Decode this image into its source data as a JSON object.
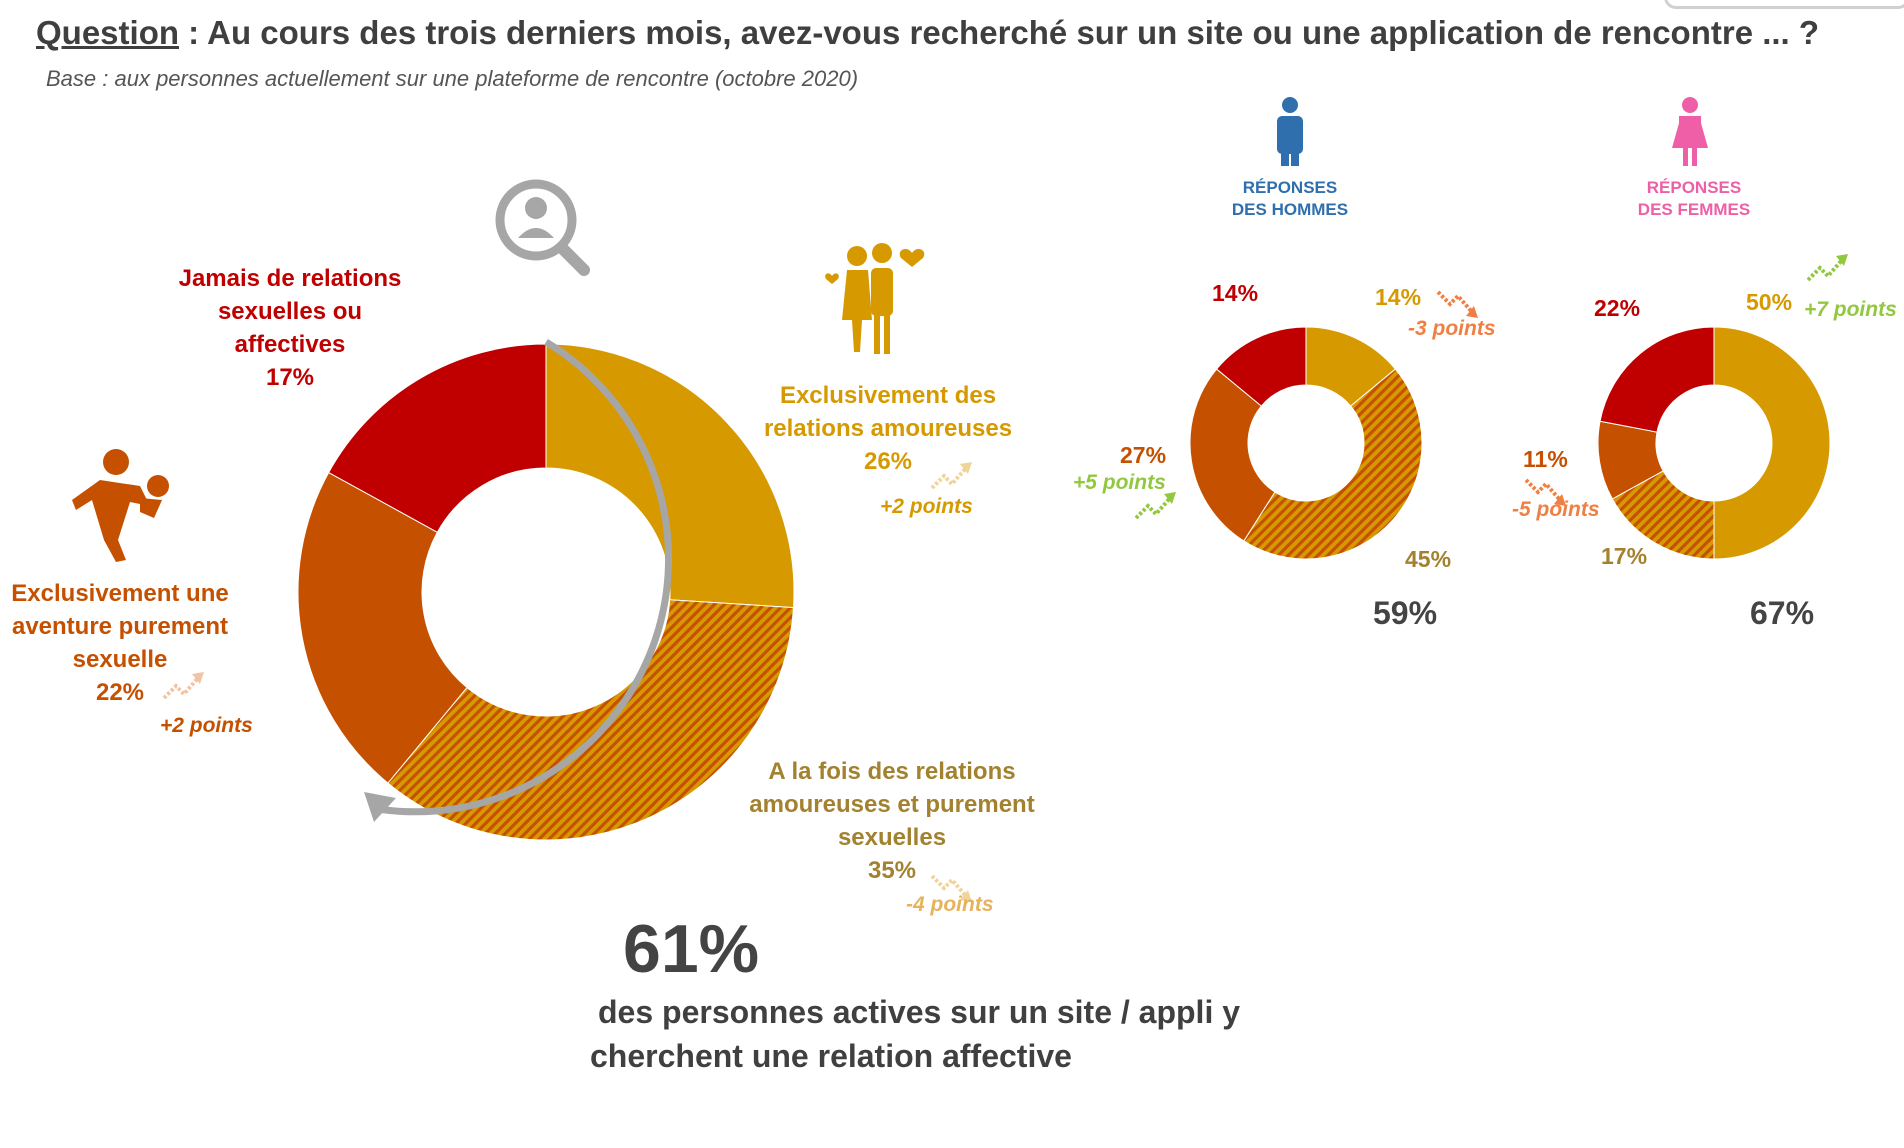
{
  "header": {
    "question_keyword": "Question",
    "question_text": " : Au cours des trois derniers mois, avez-vous recherché sur un site ou une application de rencontre ... ?",
    "base": "Base : aux personnes actuellement sur une plateforme de rencontre (octobre 2020)"
  },
  "colors": {
    "gold": "#d69a00",
    "orange": "#c45000",
    "red": "#c00000",
    "olive": "#a3822f",
    "green": "#92c83e",
    "men_blue": "#2f6fae",
    "women_pink": "#ee5fa7"
  },
  "icons": {
    "search": "search-person-icon",
    "couple": "couple-icon",
    "intimate": "intimate-couple-icon",
    "man": "man-icon",
    "woman": "woman-icon",
    "trend_up": "trend-up-icon",
    "trend_down": "trend-down-icon"
  },
  "main_labels": {
    "amoureuses": {
      "l1": "Exclusivement des",
      "l2": "relations amoureuses",
      "pct": "26%",
      "pts": "+2 points"
    },
    "les_deux": {
      "l1": "A la fois des relations",
      "l2": "amoureuses et purement",
      "l3": "sexuelles",
      "pct": "35%",
      "pts": "-4 points"
    },
    "aventure": {
      "l1": "Exclusivement une",
      "l2": "aventure purement",
      "l3": "sexuelle",
      "pct": "22%",
      "pts": "+2 points"
    },
    "jamais": {
      "l1": "Jamais de relations",
      "l2": "sexuelles ou",
      "l3": "affectives",
      "pct": "17%"
    }
  },
  "highlight": {
    "value": "61%",
    "line1": "des personnes actives sur un site / appli y",
    "line2": "cherchent une relation affective"
  },
  "men": {
    "title_l1": "RÉPONSES",
    "title_l2": "DES HOMMES",
    "amoureuses": "14%",
    "amoureuses_pts": "-3 points",
    "les_deux": "45%",
    "aventure": "27%",
    "aventure_pts": "+5 points",
    "jamais": "14%",
    "total": "59%"
  },
  "women": {
    "title_l1": "RÉPONSES",
    "title_l2": "DES FEMMES",
    "amoureuses": "50%",
    "amoureuses_pts": "+7 points",
    "les_deux": "17%",
    "aventure": "11%",
    "aventure_pts": "-5 points",
    "jamais": "22%",
    "total": "67%"
  },
  "chart_data": [
    {
      "type": "pie",
      "variant": "donut",
      "labels": [
        "Exclusivement des relations amoureuses",
        "A la fois des relations amoureuses et purement sexuelles",
        "Exclusivement une aventure purement sexuelle",
        "Jamais de relations sexuelles ou affectives"
      ],
      "values": [
        26,
        35,
        22,
        17
      ],
      "colors": [
        "#d69a00",
        "hatched #d69a00/#c45000",
        "#c45000",
        "#c00000"
      ]
    },
    {
      "type": "pie",
      "variant": "donut",
      "title": "RÉPONSES DES HOMMES",
      "labels": [
        "Exclusivement des relations amoureuses",
        "A la fois des relations amoureuses et purement sexuelles",
        "Exclusivement une aventure purement sexuelle",
        "Jamais de relations sexuelles ou affectives"
      ],
      "values": [
        14,
        45,
        27,
        14
      ],
      "colors": [
        "#d69a00",
        "hatched #d69a00/#c45000",
        "#c45000",
        "#c00000"
      ]
    },
    {
      "type": "pie",
      "variant": "donut",
      "title": "RÉPONSES DES FEMMES",
      "labels": [
        "Exclusivement des relations amoureuses",
        "A la fois des relations amoureuses et purement sexuelles",
        "Exclusivement une aventure purement sexuelle",
        "Jamais de relations sexuelles ou affectives"
      ],
      "values": [
        50,
        17,
        11,
        22
      ],
      "colors": [
        "#d69a00",
        "hatched #d69a00/#c45000",
        "#c45000",
        "#c00000"
      ]
    }
  ]
}
